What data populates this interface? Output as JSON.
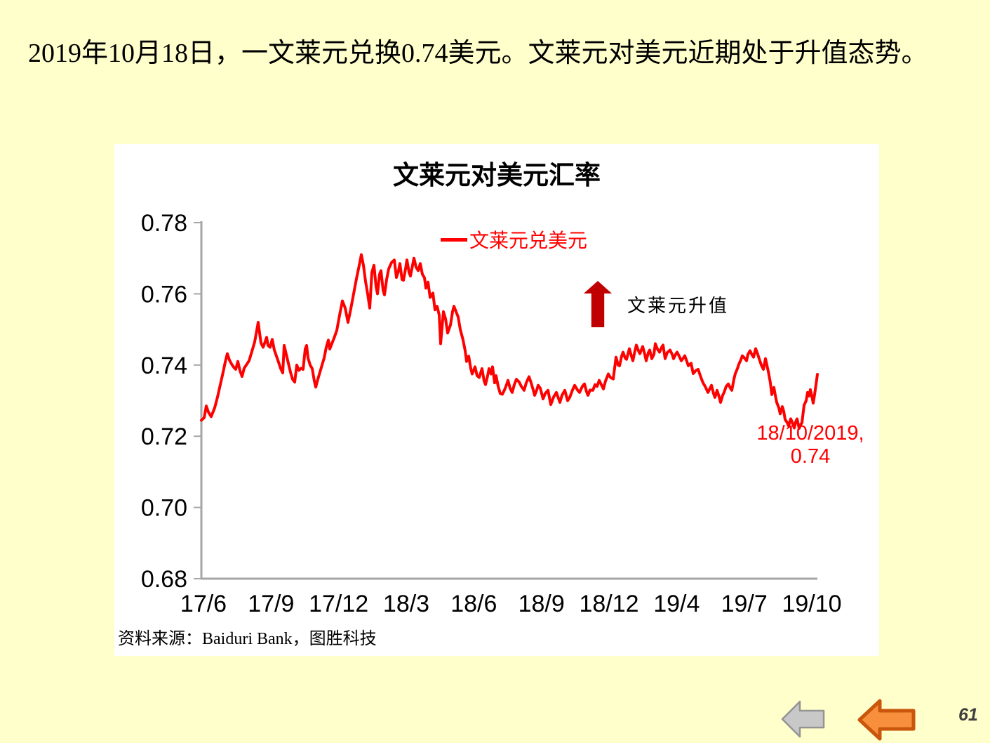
{
  "slide": {
    "title": "2019年10月18日，一文莱元兑换0.74美元。文莱元对美元近期处于升值态势。",
    "background_color": "#FFFFCC",
    "page_number": "61"
  },
  "chart": {
    "title": "文莱元对美元汇率",
    "legend_label": "文莱元兑美元",
    "legend_color": "#FF0000",
    "appreciation_label": "文莱元升值",
    "arrow_color": "#C00000",
    "point_label_line1": "18/10/2019,",
    "point_label_line2": "0.74",
    "source": "资料来源：Baiduri Bank，图胜科技",
    "axis_color": "#A6A6A6"
  },
  "icons": {
    "nav_back_gray": "left-arrow",
    "nav_back_orange": "left-arrow"
  },
  "chart_data": {
    "type": "line",
    "title": "文莱元对美元汇率",
    "series_name": "文莱元兑美元",
    "line_color": "#FF0000",
    "ylim": [
      0.68,
      0.78
    ],
    "y_ticks": [
      0.78,
      0.76,
      0.74,
      0.72,
      0.7,
      0.68
    ],
    "y_tick_labels": [
      "0.78",
      "0.76",
      "0.74",
      "0.72",
      "0.70",
      "0.68"
    ],
    "x_tick_labels": [
      "17/6",
      "17/9",
      "17/12",
      "18/3",
      "18/6",
      "18/9",
      "18/12",
      "19/4",
      "19/7",
      "19/10"
    ],
    "grid": false,
    "legend_position": "top-center",
    "points": [
      [
        0.0,
        0.7245
      ],
      [
        0.46,
        0.7252
      ],
      [
        0.8,
        0.7285
      ],
      [
        1.14,
        0.7268
      ],
      [
        1.59,
        0.7255
      ],
      [
        2.16,
        0.728
      ],
      [
        2.62,
        0.731
      ],
      [
        3.08,
        0.7345
      ],
      [
        3.53,
        0.738
      ],
      [
        3.87,
        0.7408
      ],
      [
        4.21,
        0.7432
      ],
      [
        4.56,
        0.7414
      ],
      [
        4.9,
        0.7403
      ],
      [
        5.24,
        0.7394
      ],
      [
        5.58,
        0.7388
      ],
      [
        5.92,
        0.741
      ],
      [
        6.26,
        0.7384
      ],
      [
        6.61,
        0.7368
      ],
      [
        6.95,
        0.7391
      ],
      [
        7.29,
        0.74
      ],
      [
        7.74,
        0.7412
      ],
      [
        8.2,
        0.7438
      ],
      [
        8.66,
        0.7465
      ],
      [
        9.0,
        0.7498
      ],
      [
        9.23,
        0.752
      ],
      [
        9.45,
        0.749
      ],
      [
        9.68,
        0.7462
      ],
      [
        10.02,
        0.745
      ],
      [
        10.36,
        0.7466
      ],
      [
        10.59,
        0.7478
      ],
      [
        10.82,
        0.7455
      ],
      [
        11.16,
        0.745
      ],
      [
        11.5,
        0.7472
      ],
      [
        11.85,
        0.7442
      ],
      [
        12.19,
        0.7425
      ],
      [
        12.53,
        0.7408
      ],
      [
        12.87,
        0.739
      ],
      [
        13.21,
        0.7378
      ],
      [
        13.44,
        0.7455
      ],
      [
        13.78,
        0.743
      ],
      [
        14.12,
        0.7405
      ],
      [
        14.46,
        0.738
      ],
      [
        14.81,
        0.736
      ],
      [
        15.15,
        0.7352
      ],
      [
        15.49,
        0.74
      ],
      [
        15.83,
        0.7385
      ],
      [
        16.17,
        0.7391
      ],
      [
        16.51,
        0.7388
      ],
      [
        16.86,
        0.7445
      ],
      [
        17.08,
        0.7455
      ],
      [
        17.31,
        0.742
      ],
      [
        17.65,
        0.74
      ],
      [
        17.99,
        0.739
      ],
      [
        18.34,
        0.7355
      ],
      [
        18.56,
        0.7338
      ],
      [
        18.91,
        0.736
      ],
      [
        19.25,
        0.738
      ],
      [
        19.59,
        0.74
      ],
      [
        19.93,
        0.742
      ],
      [
        20.27,
        0.745
      ],
      [
        20.62,
        0.747
      ],
      [
        20.84,
        0.7445
      ],
      [
        21.18,
        0.746
      ],
      [
        21.53,
        0.7475
      ],
      [
        21.98,
        0.7497
      ],
      [
        22.44,
        0.754
      ],
      [
        22.89,
        0.758
      ],
      [
        23.35,
        0.756
      ],
      [
        23.8,
        0.752
      ],
      [
        24.26,
        0.7558
      ],
      [
        24.72,
        0.76
      ],
      [
        25.17,
        0.7642
      ],
      [
        25.63,
        0.768
      ],
      [
        25.97,
        0.771
      ],
      [
        26.31,
        0.768
      ],
      [
        26.65,
        0.7635
      ],
      [
        26.99,
        0.76
      ],
      [
        27.33,
        0.756
      ],
      [
        27.68,
        0.766
      ],
      [
        28.02,
        0.768
      ],
      [
        28.36,
        0.762
      ],
      [
        28.59,
        0.76
      ],
      [
        28.93,
        0.7655
      ],
      [
        29.16,
        0.7665
      ],
      [
        29.5,
        0.761
      ],
      [
        29.73,
        0.7597
      ],
      [
        30.07,
        0.764
      ],
      [
        30.41,
        0.767
      ],
      [
        30.87,
        0.7688
      ],
      [
        31.32,
        0.7695
      ],
      [
        31.66,
        0.7646
      ],
      [
        32.0,
        0.7665
      ],
      [
        32.23,
        0.7685
      ],
      [
        32.57,
        0.764
      ],
      [
        32.8,
        0.7638
      ],
      [
        33.14,
        0.767
      ],
      [
        33.37,
        0.7695
      ],
      [
        33.71,
        0.766
      ],
      [
        33.94,
        0.765
      ],
      [
        34.28,
        0.768
      ],
      [
        34.51,
        0.77
      ],
      [
        34.85,
        0.7675
      ],
      [
        35.19,
        0.7665
      ],
      [
        35.54,
        0.7685
      ],
      [
        35.88,
        0.7655
      ],
      [
        36.22,
        0.7645
      ],
      [
        36.45,
        0.7616
      ],
      [
        36.79,
        0.7633
      ],
      [
        37.13,
        0.759
      ],
      [
        37.59,
        0.7602
      ],
      [
        37.93,
        0.7555
      ],
      [
        38.27,
        0.7565
      ],
      [
        38.61,
        0.754
      ],
      [
        38.84,
        0.746
      ],
      [
        39.29,
        0.755
      ],
      [
        39.64,
        0.753
      ],
      [
        39.98,
        0.749
      ],
      [
        40.43,
        0.7512
      ],
      [
        40.77,
        0.755
      ],
      [
        41.0,
        0.7565
      ],
      [
        41.34,
        0.755
      ],
      [
        41.69,
        0.7535
      ],
      [
        42.03,
        0.75
      ],
      [
        42.48,
        0.747
      ],
      [
        42.82,
        0.744
      ],
      [
        43.05,
        0.741
      ],
      [
        43.39,
        0.7425
      ],
      [
        43.74,
        0.739
      ],
      [
        43.96,
        0.7375
      ],
      [
        44.42,
        0.7395
      ],
      [
        44.76,
        0.737
      ],
      [
        45.1,
        0.7365
      ],
      [
        45.56,
        0.739
      ],
      [
        45.9,
        0.7355
      ],
      [
        46.13,
        0.7345
      ],
      [
        46.47,
        0.737
      ],
      [
        46.7,
        0.739
      ],
      [
        47.04,
        0.7375
      ],
      [
        47.27,
        0.7395
      ],
      [
        47.61,
        0.735
      ],
      [
        47.84,
        0.737
      ],
      [
        48.18,
        0.734
      ],
      [
        48.52,
        0.732
      ],
      [
        48.86,
        0.7318
      ],
      [
        49.2,
        0.733
      ],
      [
        49.54,
        0.7345
      ],
      [
        49.77,
        0.7357
      ],
      [
        50.11,
        0.7335
      ],
      [
        50.46,
        0.7323
      ],
      [
        50.8,
        0.7345
      ],
      [
        51.14,
        0.736
      ],
      [
        51.59,
        0.7352
      ],
      [
        51.94,
        0.734
      ],
      [
        52.39,
        0.7329
      ],
      [
        52.73,
        0.735
      ],
      [
        53.19,
        0.7367
      ],
      [
        53.53,
        0.735
      ],
      [
        53.87,
        0.733
      ],
      [
        54.1,
        0.7315
      ],
      [
        54.44,
        0.733
      ],
      [
        54.67,
        0.7343
      ],
      [
        55.01,
        0.7335
      ],
      [
        55.47,
        0.7305
      ],
      [
        55.81,
        0.732
      ],
      [
        56.26,
        0.7329
      ],
      [
        56.72,
        0.7289
      ],
      [
        57.18,
        0.731
      ],
      [
        57.63,
        0.7323
      ],
      [
        58.2,
        0.7295
      ],
      [
        58.54,
        0.7315
      ],
      [
        59.0,
        0.7329
      ],
      [
        59.45,
        0.73
      ],
      [
        59.79,
        0.7309
      ],
      [
        60.25,
        0.733
      ],
      [
        60.59,
        0.7343
      ],
      [
        61.05,
        0.733
      ],
      [
        61.39,
        0.7323
      ],
      [
        61.85,
        0.734
      ],
      [
        62.19,
        0.7347
      ],
      [
        62.53,
        0.7325
      ],
      [
        62.76,
        0.7315
      ],
      [
        63.1,
        0.733
      ],
      [
        63.55,
        0.7329
      ],
      [
        63.9,
        0.7345
      ],
      [
        64.24,
        0.734
      ],
      [
        64.58,
        0.7357
      ],
      [
        64.92,
        0.7345
      ],
      [
        65.26,
        0.7333
      ],
      [
        65.6,
        0.7355
      ],
      [
        66.06,
        0.7375
      ],
      [
        66.4,
        0.7365
      ],
      [
        66.86,
        0.7361
      ],
      [
        67.31,
        0.7422
      ],
      [
        67.65,
        0.74
      ],
      [
        67.88,
        0.7398
      ],
      [
        68.22,
        0.7425
      ],
      [
        68.45,
        0.7436
      ],
      [
        68.79,
        0.742
      ],
      [
        69.02,
        0.7416
      ],
      [
        69.48,
        0.7446
      ],
      [
        69.82,
        0.7425
      ],
      [
        70.05,
        0.7412
      ],
      [
        70.39,
        0.744
      ],
      [
        70.62,
        0.7456
      ],
      [
        70.96,
        0.744
      ],
      [
        71.18,
        0.7432
      ],
      [
        71.64,
        0.7452
      ],
      [
        71.98,
        0.743
      ],
      [
        72.21,
        0.7412
      ],
      [
        72.55,
        0.7435
      ],
      [
        72.78,
        0.7442
      ],
      [
        73.12,
        0.7418
      ],
      [
        73.46,
        0.743
      ],
      [
        73.69,
        0.746
      ],
      [
        74.03,
        0.7445
      ],
      [
        74.37,
        0.7436
      ],
      [
        74.72,
        0.745
      ],
      [
        74.94,
        0.7456
      ],
      [
        75.28,
        0.7418
      ],
      [
        75.63,
        0.7435
      ],
      [
        76.08,
        0.7442
      ],
      [
        76.42,
        0.743
      ],
      [
        76.65,
        0.7418
      ],
      [
        76.99,
        0.743
      ],
      [
        77.22,
        0.7436
      ],
      [
        77.56,
        0.7425
      ],
      [
        77.9,
        0.7412
      ],
      [
        78.25,
        0.742
      ],
      [
        78.47,
        0.7426
      ],
      [
        78.82,
        0.741
      ],
      [
        79.04,
        0.7398
      ],
      [
        79.5,
        0.7405
      ],
      [
        79.84,
        0.7376
      ],
      [
        80.3,
        0.7385
      ],
      [
        80.64,
        0.7388
      ],
      [
        81.09,
        0.7365
      ],
      [
        81.44,
        0.735
      ],
      [
        81.78,
        0.734
      ],
      [
        82.23,
        0.7323
      ],
      [
        82.57,
        0.7335
      ],
      [
        82.8,
        0.7343
      ],
      [
        83.14,
        0.732
      ],
      [
        83.37,
        0.7309
      ],
      [
        83.71,
        0.7329
      ],
      [
        84.05,
        0.731
      ],
      [
        84.28,
        0.7295
      ],
      [
        84.62,
        0.7315
      ],
      [
        84.85,
        0.7323
      ],
      [
        85.19,
        0.734
      ],
      [
        85.54,
        0.7347
      ],
      [
        85.88,
        0.7335
      ],
      [
        86.1,
        0.7329
      ],
      [
        86.45,
        0.736
      ],
      [
        86.67,
        0.7376
      ],
      [
        87.02,
        0.739
      ],
      [
        87.24,
        0.7402
      ],
      [
        87.59,
        0.7415
      ],
      [
        87.81,
        0.7426
      ],
      [
        88.15,
        0.742
      ],
      [
        88.5,
        0.7412
      ],
      [
        88.72,
        0.743
      ],
      [
        89.07,
        0.744
      ],
      [
        89.41,
        0.7428
      ],
      [
        89.64,
        0.7422
      ],
      [
        89.98,
        0.7446
      ],
      [
        90.32,
        0.743
      ],
      [
        90.66,
        0.7412
      ],
      [
        90.89,
        0.74
      ],
      [
        91.23,
        0.7388
      ],
      [
        91.57,
        0.7418
      ],
      [
        91.8,
        0.74
      ],
      [
        92.03,
        0.7382
      ],
      [
        92.37,
        0.735
      ],
      [
        92.6,
        0.7317
      ],
      [
        92.94,
        0.7337
      ],
      [
        93.17,
        0.7315
      ],
      [
        93.39,
        0.7295
      ],
      [
        93.74,
        0.728
      ],
      [
        93.96,
        0.7263
      ],
      [
        94.31,
        0.7283
      ],
      [
        94.53,
        0.727
      ],
      [
        94.76,
        0.7247
      ],
      [
        95.1,
        0.7238
      ],
      [
        95.33,
        0.7229
      ],
      [
        95.67,
        0.7249
      ],
      [
        95.9,
        0.724
      ],
      [
        96.24,
        0.7223
      ],
      [
        96.47,
        0.724
      ],
      [
        96.7,
        0.7249
      ],
      [
        97.04,
        0.7222
      ],
      [
        97.27,
        0.7232
      ],
      [
        97.49,
        0.7238
      ],
      [
        97.84,
        0.7287
      ],
      [
        98.18,
        0.73
      ],
      [
        98.41,
        0.7323
      ],
      [
        98.63,
        0.7313
      ],
      [
        98.86,
        0.7331
      ],
      [
        99.09,
        0.7313
      ],
      [
        99.32,
        0.7293
      ],
      [
        99.54,
        0.7317
      ],
      [
        99.77,
        0.7345
      ],
      [
        100.0,
        0.7374
      ]
    ]
  }
}
